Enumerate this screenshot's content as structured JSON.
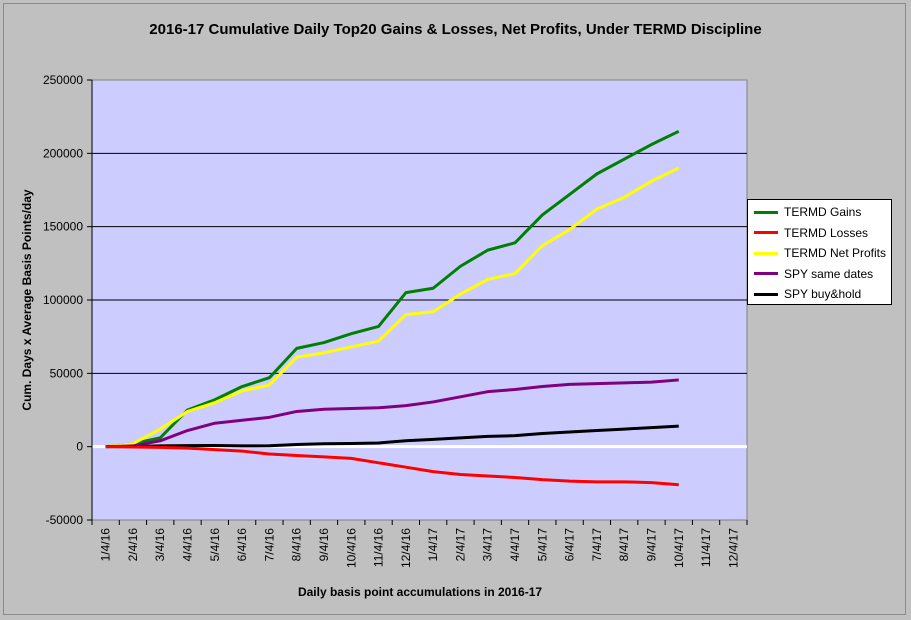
{
  "chart_data": {
    "type": "line",
    "title": "2016-17 Cumulative Daily Top20 Gains & Losses, Net Profits, Under TERMD Discipline",
    "xlabel": "Daily basis point accumulations in 2016-17",
    "ylabel": "Cum. Days x Average Basis Points/day",
    "ylim": [
      -50000,
      250000
    ],
    "yticks": [
      "250000",
      "200000",
      "150000",
      "100000",
      "50000",
      "0",
      "-50000"
    ],
    "xticks": [
      "1/4/16",
      "2/4/16",
      "3/4/16",
      "4/4/16",
      "5/4/16",
      "6/4/16",
      "7/4/16",
      "8/4/16",
      "9/4/16",
      "10/4/16",
      "11/4/16",
      "12/4/16",
      "1/4/17",
      "2/4/17",
      "3/4/17",
      "4/4/17",
      "5/4/17",
      "6/4/17",
      "7/4/17",
      "8/4/17",
      "9/4/17",
      "10/4/17",
      "11/4/17",
      "12/4/17"
    ],
    "x_index": [
      0,
      1,
      2,
      3,
      4,
      5,
      6,
      7,
      8,
      9,
      10,
      11,
      12,
      13,
      14,
      15,
      16,
      17,
      18,
      19,
      20,
      21
    ],
    "series": [
      {
        "name": "TERMD Gains",
        "color": "#008000",
        "values": [
          0,
          2000,
          6000,
          25000,
          32000,
          41000,
          47000,
          67000,
          71000,
          77000,
          82000,
          105000,
          108000,
          123000,
          134000,
          139000,
          158000,
          172000,
          186000,
          196000,
          206000,
          215000
        ]
      },
      {
        "name": "TERMD Losses",
        "color": "#ff0000",
        "values": [
          0,
          -200,
          -500,
          -1000,
          -2000,
          -3000,
          -5000,
          -6000,
          -7000,
          -8000,
          -11000,
          -14000,
          -17000,
          -19000,
          -20000,
          -21000,
          -22500,
          -23500,
          -24000,
          -24000,
          -24500,
          -26000
        ]
      },
      {
        "name": "TERMD Net Profits",
        "color": "#ffff00",
        "values": [
          0,
          2000,
          12000,
          24000,
          30000,
          38000,
          42000,
          61000,
          64000,
          68000,
          72000,
          90000,
          92000,
          104000,
          114000,
          118000,
          137000,
          148000,
          162000,
          170000,
          181000,
          190000
        ]
      },
      {
        "name": "SPY same dates",
        "color": "#800080",
        "values": [
          0,
          500,
          4000,
          11000,
          16000,
          18000,
          20000,
          24000,
          25500,
          26000,
          26500,
          28000,
          30500,
          34000,
          37500,
          39000,
          41000,
          42500,
          43000,
          43500,
          44000,
          45500
        ]
      },
      {
        "name": "SPY buy&hold",
        "color": "#000000",
        "values": [
          0,
          0,
          500,
          700,
          800,
          500,
          600,
          1500,
          2000,
          2200,
          2500,
          4000,
          5000,
          6000,
          7000,
          7500,
          9000,
          10000,
          11000,
          12000,
          13000,
          14000
        ]
      }
    ],
    "legend_position": "right",
    "grid": true,
    "plot_background": "#ccccff",
    "zero_line_color": "#ffffff"
  }
}
